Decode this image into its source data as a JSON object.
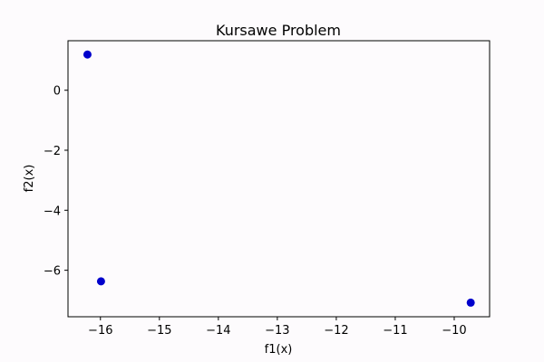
{
  "chart_data": {
    "type": "scatter",
    "title": "Kursawe Problem",
    "xlabel": "f1(x)",
    "ylabel": "f2(x)",
    "xlim": [
      -16.55,
      -9.4
    ],
    "ylim": [
      -7.55,
      1.65
    ],
    "xticks": [
      {
        "value": -16,
        "label": "−16"
      },
      {
        "value": -15,
        "label": "−15"
      },
      {
        "value": -14,
        "label": "−14"
      },
      {
        "value": -13,
        "label": "−13"
      },
      {
        "value": -12,
        "label": "−12"
      },
      {
        "value": -11,
        "label": "−11"
      },
      {
        "value": -10,
        "label": "−10"
      }
    ],
    "yticks": [
      {
        "value": 0,
        "label": "0"
      },
      {
        "value": -2,
        "label": "−2"
      },
      {
        "value": -4,
        "label": "−4"
      },
      {
        "value": -6,
        "label": "−6"
      }
    ],
    "grid": false,
    "points": [
      {
        "x": -16.22,
        "y": 1.19
      },
      {
        "x": -15.99,
        "y": -6.37
      },
      {
        "x": -9.72,
        "y": -7.08
      }
    ],
    "marker_color": "#0000cc",
    "background": "#fdfbfd"
  }
}
